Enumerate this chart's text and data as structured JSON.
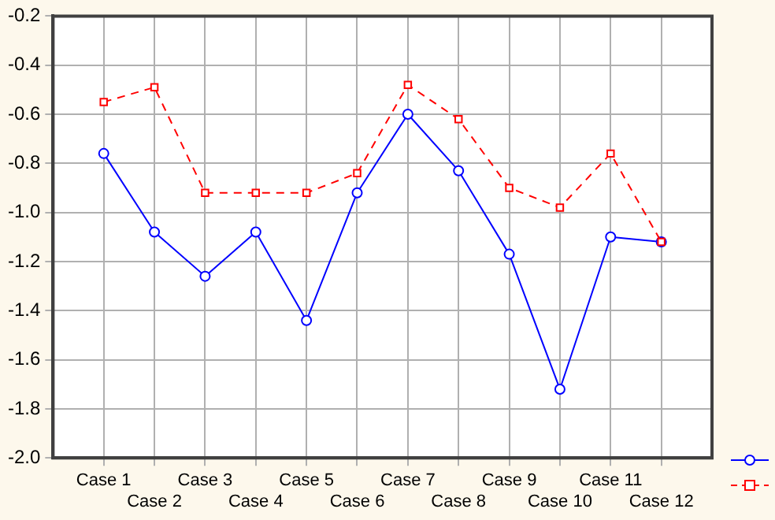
{
  "chart_data": {
    "type": "line",
    "categories": [
      "Case 1",
      "Case 2",
      "Case 3",
      "Case 4",
      "Case 5",
      "Case 6",
      "Case 7",
      "Case 8",
      "Case 9",
      "Case 10",
      "Case 11",
      "Case 12"
    ],
    "series": [
      {
        "color": "#0000ff",
        "marker": "circle",
        "line_style": "solid",
        "values": [
          -0.76,
          -1.08,
          -1.26,
          -1.08,
          -1.44,
          -0.92,
          -0.6,
          -0.83,
          -1.17,
          -1.72,
          -1.1,
          -1.12
        ]
      },
      {
        "color": "#ff0000",
        "marker": "square",
        "line_style": "dashed",
        "values": [
          -0.55,
          -0.49,
          -0.92,
          -0.92,
          -0.92,
          -0.84,
          -0.48,
          -0.62,
          -0.9,
          -0.98,
          -0.76,
          -1.12
        ]
      }
    ],
    "ylim": [
      -2.0,
      -0.2
    ],
    "yticks": [
      {
        "value": -2.0,
        "label": "-2.0"
      },
      {
        "value": -1.8,
        "label": "-1.8"
      },
      {
        "value": -1.6,
        "label": "-1.6"
      },
      {
        "value": -1.4,
        "label": "-1.4"
      },
      {
        "value": -1.2,
        "label": "-1.2"
      },
      {
        "value": -1.0,
        "label": "-1.0"
      },
      {
        "value": -0.8,
        "label": "-0.8"
      },
      {
        "value": -0.6,
        "label": "-0.6"
      },
      {
        "value": -0.4,
        "label": "-0.4"
      },
      {
        "value": -0.2,
        "label": "-0.2"
      }
    ],
    "grid": true
  }
}
